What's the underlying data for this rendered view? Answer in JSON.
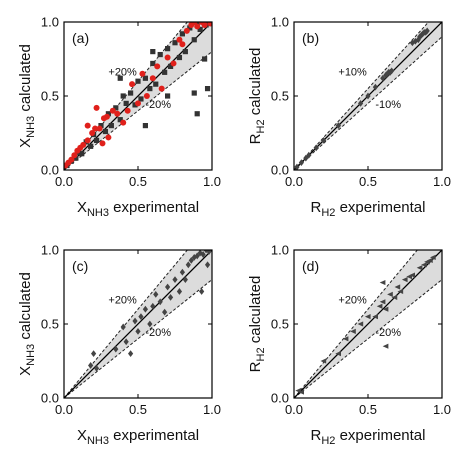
{
  "chart_data": [
    {
      "type": "scatter",
      "panel_label": "(a)",
      "xlabel": {
        "main": "X",
        "sub": "NH3",
        "suffix": " experimental"
      },
      "ylabel": {
        "main": "X",
        "sub": "NH3",
        "suffix": " calculated"
      },
      "xlim": [
        0,
        1
      ],
      "ylim": [
        0,
        1
      ],
      "xticks": [
        "0.0",
        "0.5",
        "1.0"
      ],
      "yticks": [
        "0.0",
        "0.5",
        "1.0"
      ],
      "reference_lines": {
        "parity": true,
        "band_pct": 20
      },
      "band_labels": {
        "upper": "+20%",
        "lower": "-20%"
      },
      "series": [
        {
          "marker": "square",
          "color": "#333333",
          "points": [
            [
              0.02,
              0.03
            ],
            [
              0.05,
              0.06
            ],
            [
              0.08,
              0.08
            ],
            [
              0.1,
              0.12
            ],
            [
              0.12,
              0.11
            ],
            [
              0.15,
              0.19
            ],
            [
              0.18,
              0.16
            ],
            [
              0.2,
              0.24
            ],
            [
              0.22,
              0.2
            ],
            [
              0.25,
              0.3
            ],
            [
              0.28,
              0.26
            ],
            [
              0.3,
              0.38
            ],
            [
              0.32,
              0.3
            ],
            [
              0.35,
              0.42
            ],
            [
              0.38,
              0.34
            ],
            [
              0.4,
              0.5
            ],
            [
              0.42,
              0.45
            ],
            [
              0.45,
              0.52
            ],
            [
              0.48,
              0.44
            ],
            [
              0.5,
              0.6
            ],
            [
              0.52,
              0.48
            ],
            [
              0.55,
              0.62
            ],
            [
              0.58,
              0.55
            ],
            [
              0.6,
              0.72
            ],
            [
              0.62,
              0.58
            ],
            [
              0.65,
              0.78
            ],
            [
              0.68,
              0.66
            ],
            [
              0.7,
              0.82
            ],
            [
              0.72,
              0.7
            ],
            [
              0.75,
              0.86
            ],
            [
              0.78,
              0.76
            ],
            [
              0.8,
              0.92
            ],
            [
              0.82,
              0.8
            ],
            [
              0.85,
              0.96
            ],
            [
              0.88,
              0.88
            ],
            [
              0.9,
              0.99
            ],
            [
              0.92,
              0.95
            ],
            [
              0.94,
              1.0
            ],
            [
              0.96,
              0.98
            ],
            [
              0.98,
              1.0
            ],
            [
              0.97,
              0.55
            ],
            [
              0.9,
              0.38
            ],
            [
              0.88,
              0.52
            ],
            [
              0.95,
              0.75
            ],
            [
              0.6,
              0.8
            ],
            [
              0.55,
              0.3
            ],
            [
              0.7,
              0.5
            ],
            [
              0.38,
              0.62
            ]
          ]
        },
        {
          "marker": "circle",
          "color": "#e0201b",
          "points": [
            [
              0.01,
              0.03
            ],
            [
              0.03,
              0.05
            ],
            [
              0.05,
              0.07
            ],
            [
              0.07,
              0.1
            ],
            [
              0.09,
              0.13
            ],
            [
              0.11,
              0.15
            ],
            [
              0.13,
              0.17
            ],
            [
              0.16,
              0.2
            ],
            [
              0.19,
              0.25
            ],
            [
              0.21,
              0.28
            ],
            [
              0.24,
              0.28
            ],
            [
              0.27,
              0.35
            ],
            [
              0.29,
              0.36
            ],
            [
              0.33,
              0.4
            ],
            [
              0.36,
              0.38
            ],
            [
              0.4,
              0.32
            ],
            [
              0.43,
              0.4
            ],
            [
              0.46,
              0.58
            ],
            [
              0.5,
              0.45
            ],
            [
              0.53,
              0.65
            ],
            [
              0.56,
              0.5
            ],
            [
              0.6,
              0.62
            ],
            [
              0.63,
              0.7
            ],
            [
              0.66,
              0.55
            ],
            [
              0.7,
              0.76
            ],
            [
              0.74,
              0.72
            ],
            [
              0.78,
              0.88
            ],
            [
              0.8,
              0.85
            ],
            [
              0.83,
              0.94
            ],
            [
              0.86,
              0.98
            ],
            [
              0.88,
              1.0
            ],
            [
              0.9,
              0.97
            ],
            [
              0.93,
              1.0
            ],
            [
              0.95,
              0.98
            ],
            [
              0.99,
              0.99
            ],
            [
              0.16,
              0.3
            ],
            [
              0.22,
              0.42
            ],
            [
              0.3,
              0.22
            ],
            [
              0.26,
              0.18
            ]
          ]
        }
      ]
    },
    {
      "type": "scatter",
      "panel_label": "(b)",
      "xlabel": {
        "main": "R",
        "sub": "H2",
        "suffix": " experimental"
      },
      "ylabel": {
        "main": "R",
        "sub": "H2",
        "suffix": " calculated"
      },
      "xlim": [
        0,
        1
      ],
      "ylim": [
        0,
        1
      ],
      "xticks": [
        "0.0",
        "0.5",
        "1.0"
      ],
      "yticks": [
        "0.0",
        "0.5",
        "1.0"
      ],
      "reference_lines": {
        "parity": true,
        "band_pct": 10
      },
      "band_labels": {
        "upper": "+10%",
        "lower": "-10%"
      },
      "series": [
        {
          "marker": "diamond",
          "color": "#444444",
          "points": [
            [
              0.02,
              0.02
            ],
            [
              0.05,
              0.05
            ],
            [
              0.08,
              0.08
            ],
            [
              0.1,
              0.1
            ],
            [
              0.15,
              0.15
            ],
            [
              0.2,
              0.2
            ],
            [
              0.3,
              0.3
            ],
            [
              0.45,
              0.45
            ],
            [
              0.5,
              0.5
            ],
            [
              0.55,
              0.56
            ],
            [
              0.6,
              0.62
            ],
            [
              0.62,
              0.64
            ],
            [
              0.63,
              0.65
            ],
            [
              0.64,
              0.66
            ],
            [
              0.65,
              0.66
            ],
            [
              0.66,
              0.67
            ],
            [
              0.8,
              0.86
            ],
            [
              0.82,
              0.87
            ],
            [
              0.84,
              0.88
            ],
            [
              0.85,
              0.9
            ],
            [
              0.86,
              0.91
            ],
            [
              0.87,
              0.92
            ],
            [
              0.88,
              0.93
            ],
            [
              0.89,
              0.93
            ],
            [
              0.9,
              0.94
            ]
          ]
        }
      ]
    },
    {
      "type": "scatter",
      "panel_label": "(c)",
      "xlabel": {
        "main": "X",
        "sub": "NH3",
        "suffix": " experimental"
      },
      "ylabel": {
        "main": "X",
        "sub": "NH3",
        "suffix": " calculated"
      },
      "xlim": [
        0,
        1
      ],
      "ylim": [
        0,
        1
      ],
      "xticks": [
        "0.0",
        "0.5",
        "1.0"
      ],
      "yticks": [
        "0.0",
        "0.5",
        "1.0"
      ],
      "reference_lines": {
        "parity": true,
        "band_pct": 20
      },
      "band_labels": {
        "upper": "+20%",
        "lower": "-20%"
      },
      "series": [
        {
          "marker": "diamond",
          "color": "#444444",
          "points": [
            [
              0.18,
              0.22
            ],
            [
              0.2,
              0.3
            ],
            [
              0.22,
              0.2
            ],
            [
              0.35,
              0.33
            ],
            [
              0.4,
              0.48
            ],
            [
              0.42,
              0.38
            ],
            [
              0.45,
              0.3
            ],
            [
              0.48,
              0.52
            ],
            [
              0.5,
              0.45
            ],
            [
              0.52,
              0.55
            ],
            [
              0.55,
              0.6
            ],
            [
              0.58,
              0.5
            ],
            [
              0.6,
              0.62
            ],
            [
              0.62,
              0.7
            ],
            [
              0.65,
              0.65
            ],
            [
              0.68,
              0.58
            ],
            [
              0.7,
              0.75
            ],
            [
              0.72,
              0.68
            ],
            [
              0.75,
              0.8
            ],
            [
              0.78,
              0.72
            ],
            [
              0.8,
              0.85
            ],
            [
              0.82,
              0.8
            ],
            [
              0.84,
              0.9
            ],
            [
              0.86,
              0.93
            ],
            [
              0.88,
              0.95
            ],
            [
              0.9,
              0.96
            ],
            [
              0.92,
              0.98
            ],
            [
              0.94,
              0.97
            ],
            [
              0.96,
              1.0
            ],
            [
              0.98,
              0.99
            ],
            [
              0.93,
              0.72
            ],
            [
              0.97,
              0.9
            ]
          ]
        }
      ]
    },
    {
      "type": "scatter",
      "panel_label": "(d)",
      "xlabel": {
        "main": "R",
        "sub": "H2",
        "suffix": " experimental"
      },
      "ylabel": {
        "main": "R",
        "sub": "H2",
        "suffix": " calculated"
      },
      "xlim": [
        0,
        1
      ],
      "ylim": [
        0,
        1
      ],
      "xticks": [
        "0.0",
        "0.5",
        "1.0"
      ],
      "yticks": [
        "0.0",
        "0.5",
        "1.0"
      ],
      "reference_lines": {
        "parity": true,
        "band_pct": 20
      },
      "band_labels": {
        "upper": "+20%",
        "lower": "-20%"
      },
      "series": [
        {
          "marker": "triangle",
          "color": "#444444",
          "points": [
            [
              0.03,
              0.05
            ],
            [
              0.05,
              0.04
            ],
            [
              0.2,
              0.25
            ],
            [
              0.3,
              0.3
            ],
            [
              0.35,
              0.4
            ],
            [
              0.4,
              0.45
            ],
            [
              0.45,
              0.5
            ],
            [
              0.5,
              0.55
            ],
            [
              0.55,
              0.55
            ],
            [
              0.58,
              0.62
            ],
            [
              0.6,
              0.65
            ],
            [
              0.62,
              0.6
            ],
            [
              0.65,
              0.7
            ],
            [
              0.68,
              0.68
            ],
            [
              0.7,
              0.75
            ],
            [
              0.72,
              0.72
            ],
            [
              0.75,
              0.8
            ],
            [
              0.78,
              0.82
            ],
            [
              0.8,
              0.83
            ],
            [
              0.85,
              0.88
            ],
            [
              0.88,
              0.9
            ],
            [
              0.9,
              0.92
            ],
            [
              0.92,
              0.93
            ],
            [
              0.94,
              0.95
            ],
            [
              0.62,
              0.35
            ],
            [
              0.6,
              0.78
            ]
          ]
        }
      ]
    }
  ]
}
